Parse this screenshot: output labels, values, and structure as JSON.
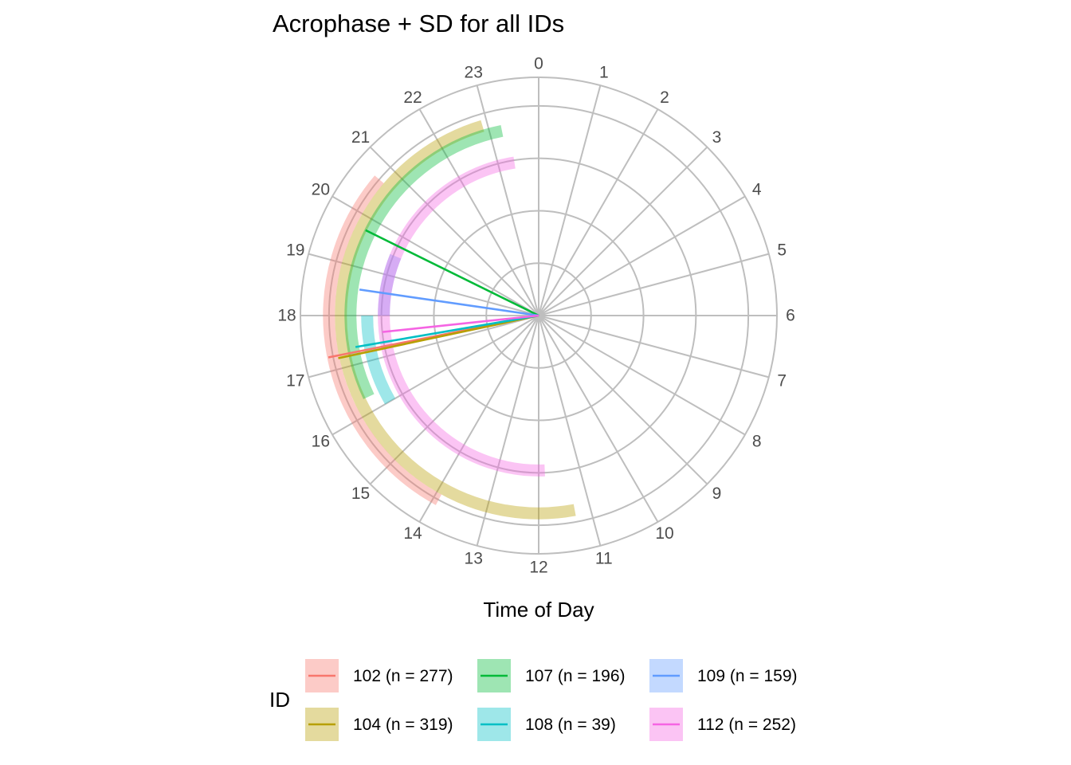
{
  "chart_data": {
    "type": "polar",
    "title": "Acrophase + SD for all IDs",
    "xlabel": "Time of Day",
    "legend_title": "ID",
    "legend_position": "bottom",
    "angle_ticks": [
      "0",
      "1",
      "2",
      "3",
      "4",
      "5",
      "6",
      "7",
      "8",
      "9",
      "10",
      "11",
      "12",
      "13",
      "14",
      "15",
      "16",
      "17",
      "18",
      "19",
      "20",
      "21",
      "22",
      "23"
    ],
    "angle_range": [
      0,
      24
    ],
    "grid": true,
    "series": [
      {
        "id": "102",
        "name": "102 (n = 277)",
        "color": "#F8766D",
        "acrophase": 17.25,
        "sd_start": 13.9,
        "sd_end": 20.7,
        "line_length": 0.9
      },
      {
        "id": "104",
        "name": "104 (n = 319)",
        "color": "#B79F00",
        "acrophase": 17.2,
        "sd_start": 11.3,
        "sd_end": 22.9,
        "line_length": 0.86
      },
      {
        "id": "107",
        "name": "107 (n = 196)",
        "color": "#00BA38",
        "acrophase": 19.75,
        "sd_start": 16.3,
        "sd_end": 23.25,
        "line_length": 0.81
      },
      {
        "id": "108",
        "name": "108 (n = 39)",
        "color": "#00BFC4",
        "acrophase": 17.35,
        "sd_start": 16.0,
        "sd_end": 18.0,
        "line_length": 0.78
      },
      {
        "id": "109",
        "name": "109 (n = 159)",
        "color": "#619CFF",
        "acrophase": 18.55,
        "sd_start": 18.0,
        "sd_end": 19.5,
        "line_length": 0.76
      },
      {
        "id": "112",
        "name": "112 (n = 252)",
        "color": "#F564E3",
        "acrophase": 17.6,
        "sd_start": 11.85,
        "sd_end": 23.4,
        "line_length": 0.66
      }
    ]
  }
}
